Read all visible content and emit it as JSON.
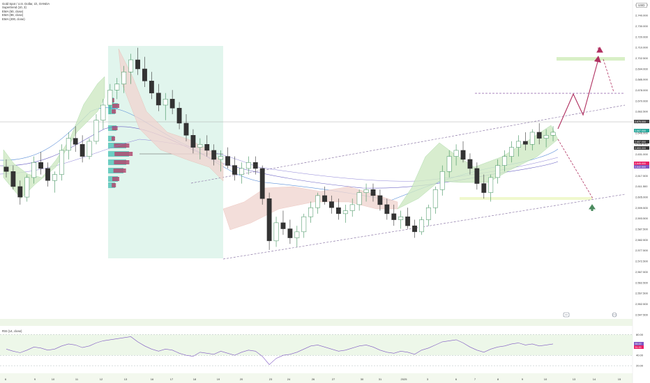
{
  "legend": {
    "symbol": "Gold Spot / U.S. Dollar, 1h, OANDA",
    "line2": "Supertrend (10, 3)",
    "line3": "EMA (50, close)",
    "line4": "EMA (89, close)",
    "line5": "EMA (200, close)"
  },
  "currency_label": "USD",
  "rsi_label": "RSI (14, close)",
  "chart_data": {
    "type": "candlestick",
    "title": "Gold Spot / U.S. Dollar, 1h, OANDA",
    "y_ticks": [
      "2,750.000",
      "2,740.000",
      "2,730.000",
      "2,720.000",
      "2,710.000",
      "2,702.500",
      "2,694.000",
      "2,686.000",
      "2,678.000",
      "2,670.000",
      "2,662.500",
      "2,654.000",
      "2,646.000",
      "2,638.500",
      "2,631.000",
      "2,623.500",
      "2,617.500",
      "2,611.500",
      "2,605.000",
      "2,599.500",
      "2,593.500",
      "2,587.500",
      "2,582.500",
      "2,577.500",
      "2,572.500",
      "2,567.500",
      "2,562.500",
      "2,557.500",
      "2,552.500",
      "2,547.500"
    ],
    "x_ticks": [
      "6",
      "9",
      "10",
      "11",
      "12",
      "13",
      "16",
      "17",
      "18",
      "19",
      "20",
      "23",
      "24",
      "26",
      "27",
      "30",
      "31",
      "2025",
      "3",
      "6",
      "7",
      "8",
      "9",
      "10",
      "13",
      "14",
      "15"
    ],
    "ylim": [
      2547,
      2752
    ],
    "price_tags": [
      {
        "value": "2,670.000",
        "color": "#444444"
      },
      {
        "value": "2,667.000",
        "color": "#26a69a"
      },
      {
        "value": "2,657.000",
        "color": "#333333"
      },
      {
        "value": "2,653.000",
        "color": "#333333"
      },
      {
        "value": "2,645.000",
        "color": "#e91e63"
      },
      {
        "value": "2,642.500",
        "color": "#7e57c2"
      }
    ],
    "candles_ohlc": [
      [
        2645,
        2650,
        2638,
        2642
      ],
      [
        2642,
        2646,
        2630,
        2632
      ],
      [
        2632,
        2636,
        2620,
        2625
      ],
      [
        2625,
        2640,
        2622,
        2638
      ],
      [
        2638,
        2652,
        2634,
        2648
      ],
      [
        2648,
        2655,
        2640,
        2644
      ],
      [
        2644,
        2648,
        2632,
        2636
      ],
      [
        2636,
        2642,
        2628,
        2640
      ],
      [
        2640,
        2660,
        2636,
        2656
      ],
      [
        2656,
        2668,
        2650,
        2664
      ],
      [
        2664,
        2672,
        2655,
        2660
      ],
      [
        2660,
        2666,
        2648,
        2652
      ],
      [
        2652,
        2664,
        2650,
        2662
      ],
      [
        2662,
        2680,
        2660,
        2676
      ],
      [
        2676,
        2690,
        2670,
        2686
      ],
      [
        2686,
        2700,
        2680,
        2696
      ],
      [
        2696,
        2704,
        2690,
        2700
      ],
      [
        2700,
        2712,
        2694,
        2708
      ],
      [
        2708,
        2720,
        2700,
        2716
      ],
      [
        2716,
        2724,
        2706,
        2710
      ],
      [
        2710,
        2718,
        2698,
        2702
      ],
      [
        2702,
        2708,
        2690,
        2694
      ],
      [
        2694,
        2700,
        2682,
        2686
      ],
      [
        2686,
        2694,
        2676,
        2690
      ],
      [
        2690,
        2696,
        2680,
        2684
      ],
      [
        2684,
        2688,
        2670,
        2674
      ],
      [
        2674,
        2680,
        2662,
        2666
      ],
      [
        2666,
        2670,
        2654,
        2658
      ],
      [
        2658,
        2664,
        2650,
        2660
      ],
      [
        2660,
        2666,
        2652,
        2656
      ],
      [
        2656,
        2660,
        2646,
        2650
      ],
      [
        2650,
        2656,
        2642,
        2652
      ],
      [
        2652,
        2658,
        2644,
        2646
      ],
      [
        2646,
        2652,
        2636,
        2640
      ],
      [
        2640,
        2648,
        2634,
        2644
      ],
      [
        2644,
        2652,
        2640,
        2648
      ],
      [
        2648,
        2652,
        2640,
        2644
      ],
      [
        2644,
        2646,
        2620,
        2624
      ],
      [
        2624,
        2628,
        2590,
        2596
      ],
      [
        2596,
        2612,
        2592,
        2608
      ],
      [
        2608,
        2616,
        2600,
        2604
      ],
      [
        2604,
        2610,
        2594,
        2598
      ],
      [
        2598,
        2606,
        2592,
        2602
      ],
      [
        2602,
        2614,
        2598,
        2612
      ],
      [
        2612,
        2622,
        2608,
        2618
      ],
      [
        2618,
        2628,
        2614,
        2626
      ],
      [
        2626,
        2632,
        2620,
        2622
      ],
      [
        2622,
        2626,
        2614,
        2618
      ],
      [
        2618,
        2624,
        2610,
        2614
      ],
      [
        2614,
        2620,
        2608,
        2616
      ],
      [
        2616,
        2624,
        2612,
        2620
      ],
      [
        2620,
        2630,
        2616,
        2628
      ],
      [
        2628,
        2634,
        2622,
        2630
      ],
      [
        2630,
        2634,
        2622,
        2626
      ],
      [
        2626,
        2630,
        2616,
        2620
      ],
      [
        2620,
        2624,
        2610,
        2614
      ],
      [
        2614,
        2620,
        2606,
        2610
      ],
      [
        2610,
        2616,
        2604,
        2612
      ],
      [
        2612,
        2618,
        2604,
        2606
      ],
      [
        2606,
        2610,
        2598,
        2602
      ],
      [
        2602,
        2612,
        2600,
        2610
      ],
      [
        2610,
        2620,
        2606,
        2618
      ],
      [
        2618,
        2632,
        2614,
        2630
      ],
      [
        2630,
        2646,
        2626,
        2642
      ],
      [
        2642,
        2656,
        2638,
        2652
      ],
      [
        2652,
        2660,
        2646,
        2656
      ],
      [
        2656,
        2662,
        2648,
        2650
      ],
      [
        2650,
        2654,
        2640,
        2644
      ],
      [
        2644,
        2648,
        2630,
        2634
      ],
      [
        2634,
        2640,
        2624,
        2628
      ],
      [
        2628,
        2640,
        2622,
        2638
      ],
      [
        2638,
        2650,
        2634,
        2646
      ],
      [
        2646,
        2656,
        2642,
        2652
      ],
      [
        2652,
        2662,
        2648,
        2658
      ],
      [
        2658,
        2666,
        2652,
        2662
      ],
      [
        2662,
        2668,
        2656,
        2660
      ],
      [
        2660,
        2670,
        2656,
        2668
      ],
      [
        2668,
        2674,
        2660,
        2664
      ],
      [
        2664,
        2670,
        2658,
        2666
      ],
      [
        2666,
        2672,
        2662,
        2668
      ]
    ],
    "rsi": {
      "levels": [
        "80.00",
        "40.00",
        "20.00"
      ],
      "tags": [
        {
          "value": "55.00",
          "color": "#7e57c2"
        },
        {
          "value": "51.00",
          "color": "#e91e63"
        }
      ],
      "values": [
        52,
        48,
        45,
        50,
        56,
        54,
        50,
        52,
        58,
        62,
        60,
        55,
        58,
        64,
        68,
        70,
        72,
        74,
        76,
        66,
        58,
        52,
        48,
        52,
        50,
        44,
        40,
        38,
        46,
        44,
        42,
        48,
        44,
        40,
        46,
        50,
        48,
        38,
        22,
        34,
        40,
        42,
        46,
        52,
        58,
        60,
        56,
        52,
        48,
        50,
        54,
        58,
        60,
        56,
        50,
        46,
        44,
        48,
        46,
        42,
        50,
        54,
        60,
        66,
        68,
        70,
        64,
        56,
        50,
        46,
        52,
        56,
        58,
        62,
        64,
        60,
        62,
        58,
        60,
        62
      ]
    }
  }
}
